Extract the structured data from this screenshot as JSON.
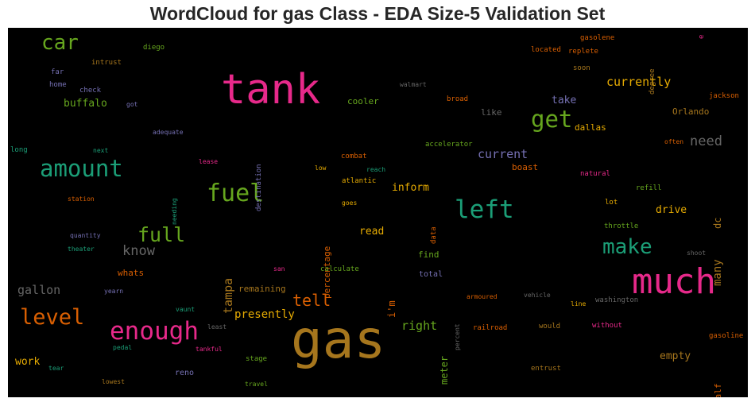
{
  "title": "WordCloud for gas Class - EDA Size-5 Validation Set",
  "colors": {
    "green": "#66a61e",
    "teal": "#1b9e77",
    "pink": "#e7298a",
    "orange": "#d95f02",
    "gold": "#a6761d",
    "yellow": "#e6ab02",
    "purple": "#7570b3",
    "gray": "#666666"
  },
  "words": [
    {
      "text": "tank"
    },
    {
      "text": "gas"
    },
    {
      "text": "much"
    },
    {
      "text": "fuel"
    },
    {
      "text": "amount"
    },
    {
      "text": "left"
    },
    {
      "text": "enough"
    },
    {
      "text": "get"
    },
    {
      "text": "car"
    },
    {
      "text": "level"
    },
    {
      "text": "full"
    },
    {
      "text": "make"
    },
    {
      "text": "tell"
    },
    {
      "text": "need"
    },
    {
      "text": "know"
    },
    {
      "text": "gallon"
    },
    {
      "text": "currently"
    },
    {
      "text": "current"
    },
    {
      "text": "right"
    },
    {
      "text": "presently"
    },
    {
      "text": "buffalo"
    },
    {
      "text": "tampa"
    },
    {
      "text": "inform"
    },
    {
      "text": "take"
    },
    {
      "text": "drive"
    },
    {
      "text": "read"
    },
    {
      "text": "many"
    },
    {
      "text": "dc"
    },
    {
      "text": "empty"
    },
    {
      "text": "work"
    },
    {
      "text": "cooler"
    },
    {
      "text": "dallas"
    },
    {
      "text": "boast"
    },
    {
      "text": "Orlando"
    },
    {
      "text": "like"
    },
    {
      "text": "remaining"
    },
    {
      "text": "meter"
    },
    {
      "text": "i'm"
    },
    {
      "text": "find"
    },
    {
      "text": "whats"
    },
    {
      "text": "half"
    },
    {
      "text": "percentage"
    },
    {
      "text": "total"
    },
    {
      "text": "reno"
    },
    {
      "text": "intrust"
    },
    {
      "text": "diego"
    },
    {
      "text": "gasolene"
    },
    {
      "text": "replete"
    },
    {
      "text": "located"
    },
    {
      "text": "soon"
    },
    {
      "text": "degree"
    },
    {
      "text": "e"
    },
    {
      "text": "far"
    },
    {
      "text": "home"
    },
    {
      "text": "check"
    },
    {
      "text": "got"
    },
    {
      "text": "walmart"
    },
    {
      "text": "broad"
    },
    {
      "text": "jackson"
    },
    {
      "text": "adequate"
    },
    {
      "text": "long"
    },
    {
      "text": "next"
    },
    {
      "text": "destination"
    },
    {
      "text": "accelerator"
    },
    {
      "text": "often"
    },
    {
      "text": "lease"
    },
    {
      "text": "combat"
    },
    {
      "text": "low"
    },
    {
      "text": "reach"
    },
    {
      "text": "natural"
    },
    {
      "text": "needing"
    },
    {
      "text": "atlantic"
    },
    {
      "text": "refill"
    },
    {
      "text": "station"
    },
    {
      "text": "goes"
    },
    {
      "text": "lot"
    },
    {
      "text": "data"
    },
    {
      "text": "throttle"
    },
    {
      "text": "quantity"
    },
    {
      "text": "theater"
    },
    {
      "text": "shoot"
    },
    {
      "text": "san"
    },
    {
      "text": "calculate"
    },
    {
      "text": "yearn"
    },
    {
      "text": "armoured"
    },
    {
      "text": "vehicle"
    },
    {
      "text": "line"
    },
    {
      "text": "washington"
    },
    {
      "text": "percent"
    },
    {
      "text": "vaunt"
    },
    {
      "text": "least"
    },
    {
      "text": "railroad"
    },
    {
      "text": "would"
    },
    {
      "text": "without"
    },
    {
      "text": "gasoline"
    },
    {
      "text": "pedal"
    },
    {
      "text": "tankful"
    },
    {
      "text": "stage"
    },
    {
      "text": "tear"
    },
    {
      "text": "entrust"
    },
    {
      "text": "lowest"
    },
    {
      "text": "travel"
    }
  ]
}
